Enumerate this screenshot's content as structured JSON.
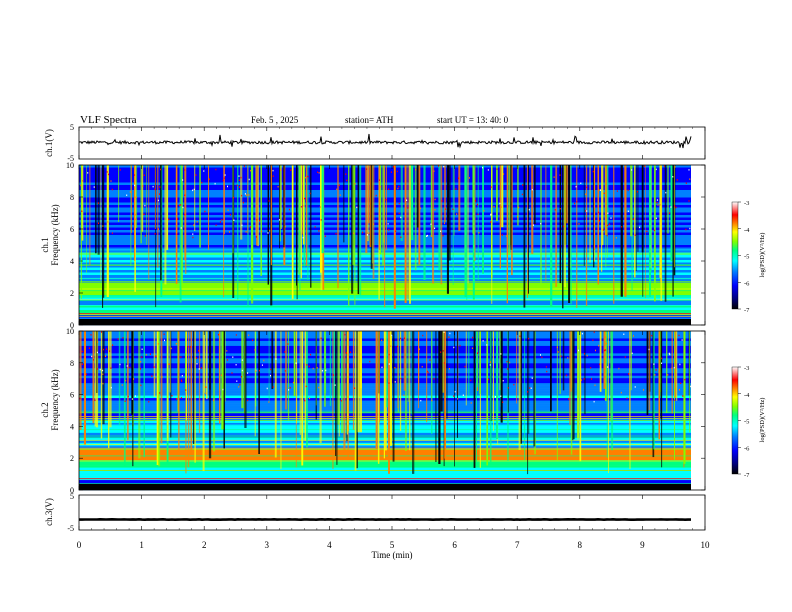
{
  "header": {
    "title": "VLF  Spectra",
    "date": "Feb. 5  , 2025",
    "station": "station= ATH",
    "start": "start  UT  =   13: 40: 0"
  },
  "chart_data": [
    {
      "type": "line",
      "panel": "ch1-waveform",
      "ylabel": "ch.1(V)",
      "ylim": [
        -5,
        5
      ],
      "ytick_labels": [
        "5",
        "-5"
      ],
      "xlim": [
        0,
        10
      ],
      "description_values": "noisy signal near +0.2 V with spikes up to about +3 V and down to about -2 V",
      "baseline": 0.2
    },
    {
      "type": "heatmap",
      "panel": "ch1-spectrogram",
      "ylabel": "ch.1",
      "ylabel2": "Frequency  (kHz)",
      "ylim": [
        0,
        10
      ],
      "ytick_labels": [
        "0",
        "2",
        "4",
        "6",
        "8",
        "10"
      ],
      "xlim": [
        0,
        10
      ],
      "colorbar": {
        "label": "log(PSD)(V²/Hz)",
        "range": [
          -7,
          -3
        ],
        "tick_labels": [
          "-3",
          "-4",
          "-5",
          "-6",
          "-7"
        ]
      }
    },
    {
      "type": "heatmap",
      "panel": "ch2-spectrogram",
      "ylabel": "ch.2",
      "ylabel2": "Frequency  (kHz)",
      "ylim": [
        0,
        10
      ],
      "ytick_labels": [
        "0",
        "2",
        "4",
        "6",
        "8",
        "10"
      ],
      "xlim": [
        0,
        10
      ],
      "colorbar": {
        "label": "log(PSD)(V²/Hz)",
        "range": [
          -7,
          -3
        ],
        "tick_labels": [
          "-3",
          "-4",
          "-5",
          "-6",
          "-7"
        ]
      }
    },
    {
      "type": "line",
      "panel": "ch3-waveform",
      "ylabel": "ch.3(V)",
      "ylim": [
        -5,
        5
      ],
      "ytick_labels": [
        "5",
        "-5"
      ],
      "xlim": [
        0,
        10
      ],
      "baseline": -2
    }
  ],
  "xaxis": {
    "label": "Time  (min)",
    "tick_labels": [
      "0",
      "1",
      "2",
      "3",
      "4",
      "5",
      "6",
      "7",
      "8",
      "9",
      "10"
    ]
  },
  "colors": {
    "axis": "#000000",
    "colormap": [
      "#000000",
      "#000080",
      "#0000ff",
      "#0080ff",
      "#00ffff",
      "#00ff80",
      "#80ff00",
      "#ffff00",
      "#ff8000",
      "#ff0000",
      "#ffffff"
    ]
  }
}
